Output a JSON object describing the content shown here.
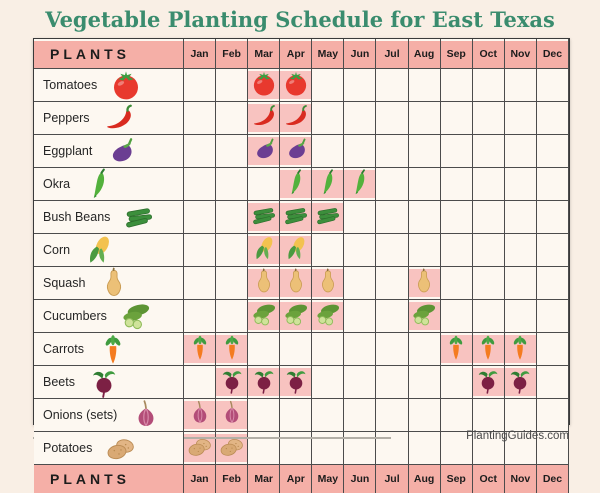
{
  "title": "Vegetable Planting Schedule for East Texas",
  "attribution": "PlantingGuides.com",
  "table": {
    "plants_header_top": "PLANTS",
    "plants_header_bottom": "PLANTS"
  },
  "chart_data": {
    "type": "table",
    "title": "Vegetable Planting Schedule for East Texas",
    "columns": [
      "Jan",
      "Feb",
      "Mar",
      "Apr",
      "May",
      "Jun",
      "Jul",
      "Aug",
      "Sep",
      "Oct",
      "Nov",
      "Dec"
    ],
    "rows": [
      {
        "plant": "Tomatoes",
        "icon": "tomato-icon",
        "planting_months": [
          "Mar",
          "Apr"
        ]
      },
      {
        "plant": "Peppers",
        "icon": "pepper-icon",
        "planting_months": [
          "Mar",
          "Apr"
        ]
      },
      {
        "plant": "Eggplant",
        "icon": "eggplant-icon",
        "planting_months": [
          "Mar",
          "Apr"
        ]
      },
      {
        "plant": "Okra",
        "icon": "okra-icon",
        "planting_months": [
          "Apr",
          "May",
          "Jun"
        ]
      },
      {
        "plant": "Bush Beans",
        "icon": "beans-icon",
        "planting_months": [
          "Mar",
          "Apr",
          "May"
        ]
      },
      {
        "plant": "Corn",
        "icon": "corn-icon",
        "planting_months": [
          "Mar",
          "Apr"
        ]
      },
      {
        "plant": "Squash",
        "icon": "squash-icon",
        "planting_months": [
          "Mar",
          "Apr",
          "May",
          "Aug"
        ]
      },
      {
        "plant": "Cucumbers",
        "icon": "cucumber-icon",
        "planting_months": [
          "Mar",
          "Apr",
          "May",
          "Aug"
        ]
      },
      {
        "plant": "Carrots",
        "icon": "carrot-icon",
        "planting_months": [
          "Jan",
          "Feb",
          "Sep",
          "Oct",
          "Nov"
        ]
      },
      {
        "plant": "Beets",
        "icon": "beet-icon",
        "planting_months": [
          "Feb",
          "Mar",
          "Apr",
          "Oct",
          "Nov"
        ]
      },
      {
        "plant": "Onions (sets)",
        "icon": "onion-icon",
        "planting_months": [
          "Jan",
          "Feb"
        ]
      },
      {
        "plant": "Potatoes",
        "icon": "potato-icon",
        "planting_months": [
          "Jan",
          "Feb"
        ]
      }
    ]
  },
  "colors": {
    "page_background": "#f9efe5",
    "cell_background": "#fdf8f1",
    "header_pink": "#f5afa7",
    "planting_pink": "#f8c3c0",
    "title_green": "#3a8c6e",
    "grid_line": "#4c4c4c"
  }
}
